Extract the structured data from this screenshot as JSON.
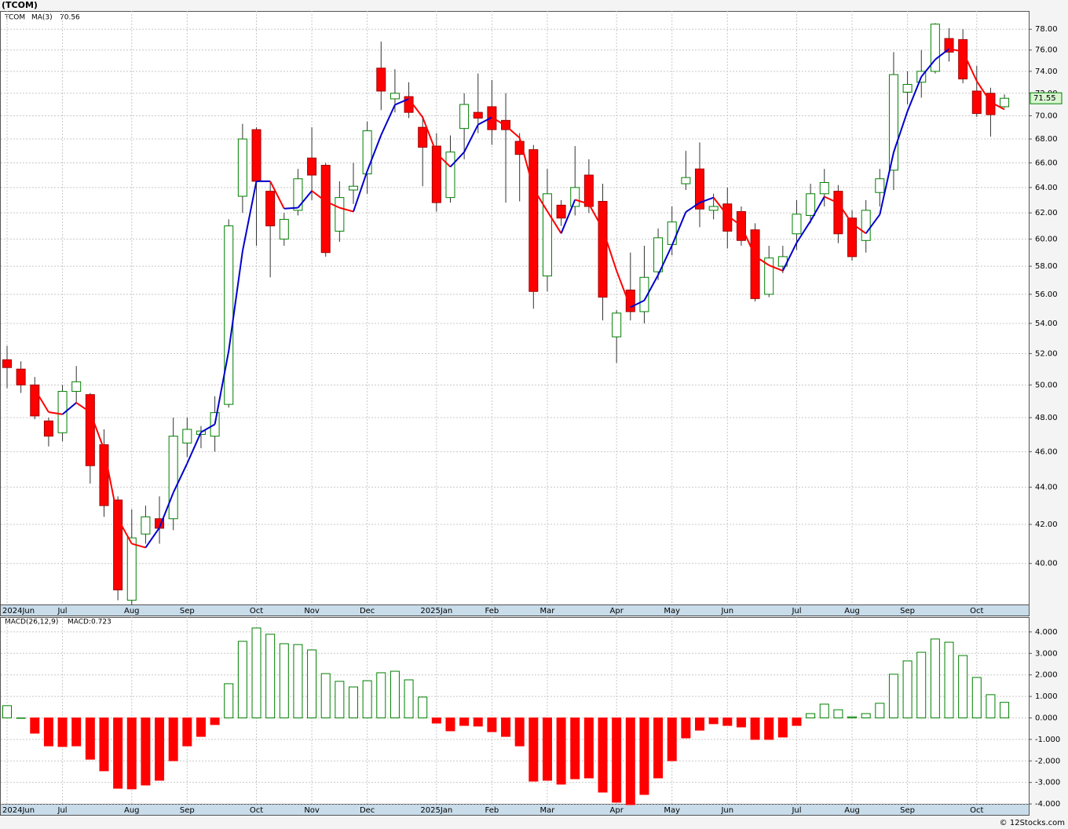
{
  "chart_data": [
    {
      "type": "candlestick",
      "title": "(TCOM)",
      "categories": [
        "2024Jun",
        null,
        null,
        null,
        "Jul",
        null,
        null,
        null,
        null,
        "Aug",
        null,
        null,
        null,
        "Sep",
        null,
        null,
        null,
        null,
        "Oct",
        null,
        null,
        null,
        "Nov",
        null,
        null,
        null,
        "Dec",
        null,
        null,
        null,
        null,
        "2025Jan",
        null,
        null,
        null,
        "Feb",
        null,
        null,
        null,
        "Mar",
        null,
        null,
        null,
        null,
        "Apr",
        null,
        null,
        null,
        "May",
        null,
        null,
        null,
        "Jun",
        null,
        null,
        null,
        null,
        "Jul",
        null,
        null,
        null,
        "Aug",
        null,
        null,
        null,
        "Sep",
        null,
        null,
        null,
        null,
        "Oct",
        null,
        null
      ],
      "series": [
        {
          "name": "TCOM",
          "color": "#008000",
          "down_color": "#ff0000",
          "open": [
            51.6,
            51.0,
            50.0,
            47.8,
            47.1,
            49.6,
            49.4,
            46.4,
            43.3,
            38.2,
            41.5,
            42.3,
            42.3,
            46.5,
            47.0,
            46.9,
            48.8,
            63.3,
            68.8,
            63.7,
            60.0,
            62.2,
            66.4,
            65.8,
            60.6,
            63.8,
            65.1,
            74.3,
            71.5,
            71.7,
            69.0,
            67.4,
            63.2,
            68.9,
            70.3,
            70.8,
            69.6,
            67.8,
            67.1,
            57.3,
            62.6,
            62.5,
            65.0,
            62.9,
            53.1,
            56.3,
            54.8,
            57.6,
            59.6,
            64.3,
            65.5,
            62.2,
            62.7,
            62.1,
            60.7,
            56.0,
            58.0,
            60.4,
            61.8,
            63.5,
            63.7,
            61.6,
            59.9,
            63.6,
            65.4,
            72.1,
            73.0,
            74.0,
            77.1,
            77.0,
            72.2,
            72.0,
            70.8
          ],
          "high": [
            52.5,
            51.5,
            50.5,
            48.0,
            50.0,
            51.2,
            49.5,
            47.3,
            43.5,
            42.8,
            43.0,
            43.5,
            48.0,
            48.0,
            47.5,
            49.3,
            61.5,
            69.3,
            69.0,
            64.5,
            62.0,
            65.5,
            69.0,
            66.0,
            64.5,
            66.0,
            69.5,
            76.8,
            74.2,
            73.0,
            70.0,
            68.5,
            68.3,
            72.0,
            73.8,
            73.2,
            72.0,
            68.5,
            67.5,
            65.5,
            63.0,
            67.4,
            66.3,
            64.3,
            54.9,
            59.0,
            59.5,
            60.8,
            62.5,
            67.0,
            67.7,
            63.5,
            64.0,
            62.5,
            61.2,
            59.5,
            59.5,
            63.0,
            64.3,
            65.5,
            64.2,
            62.2,
            63.0,
            65.5,
            75.8,
            74.0,
            76.0,
            78.6,
            78.1,
            78.0,
            74.5,
            72.5,
            71.9
          ],
          "low": [
            49.8,
            49.5,
            47.9,
            46.3,
            46.6,
            48.9,
            44.2,
            42.4,
            38.2,
            38.0,
            41.0,
            41.0,
            41.7,
            45.7,
            46.2,
            46.0,
            48.6,
            62.0,
            59.5,
            57.2,
            59.5,
            61.8,
            63.0,
            58.7,
            59.8,
            62.7,
            63.5,
            70.5,
            70.3,
            69.8,
            64.1,
            62.1,
            62.8,
            66.3,
            68.5,
            67.5,
            62.8,
            62.9,
            55.0,
            56.2,
            61.0,
            61.8,
            62.0,
            54.2,
            51.4,
            54.2,
            54.0,
            57.0,
            58.8,
            63.8,
            60.9,
            61.5,
            59.3,
            59.5,
            55.5,
            55.8,
            57.5,
            59.2,
            61.2,
            62.5,
            59.7,
            58.4,
            59.0,
            62.5,
            63.8,
            71.0,
            71.6,
            73.8,
            74.9,
            72.9,
            69.9,
            68.2,
            70.7
          ],
          "close": [
            51.1,
            50.0,
            48.1,
            46.9,
            49.6,
            50.2,
            45.2,
            43.0,
            38.7,
            41.3,
            42.4,
            41.8,
            46.9,
            47.3,
            47.2,
            48.3,
            61.0,
            68.0,
            64.5,
            61.0,
            61.5,
            64.7,
            65.0,
            59.0,
            63.2,
            64.1,
            68.7,
            72.2,
            72.0,
            70.3,
            67.3,
            62.8,
            66.9,
            71.0,
            69.8,
            68.8,
            68.8,
            66.7,
            56.2,
            63.5,
            61.6,
            64.0,
            62.5,
            55.8,
            54.7,
            54.8,
            57.2,
            60.1,
            61.3,
            64.8,
            62.3,
            62.5,
            60.6,
            59.9,
            55.7,
            58.6,
            58.7,
            61.9,
            63.5,
            64.4,
            60.4,
            58.7,
            62.2,
            64.7,
            73.7,
            72.8,
            74.0,
            78.5,
            75.8,
            73.3,
            70.2,
            70.1,
            71.55
          ]
        },
        {
          "name": "MA(3)",
          "color": "#0000cc",
          "down_color": "#ff0000",
          "values": [
            null,
            null,
            49.73,
            48.33,
            48.2,
            48.9,
            48.33,
            46.13,
            42.3,
            41.0,
            40.8,
            41.83,
            43.7,
            45.33,
            47.13,
            47.6,
            52.17,
            59.1,
            64.5,
            64.5,
            62.33,
            62.4,
            63.73,
            62.9,
            62.4,
            62.1,
            65.33,
            68.33,
            70.97,
            71.5,
            69.87,
            66.8,
            65.67,
            66.9,
            69.23,
            69.87,
            69.13,
            68.1,
            63.9,
            62.13,
            60.43,
            63.03,
            62.7,
            60.77,
            57.67,
            55.1,
            55.57,
            57.37,
            59.53,
            62.07,
            62.8,
            63.2,
            61.8,
            61.0,
            58.73,
            58.07,
            57.67,
            59.73,
            61.37,
            63.27,
            62.77,
            61.17,
            60.43,
            61.87,
            66.87,
            70.4,
            73.5,
            75.1,
            76.1,
            75.87,
            73.1,
            71.2,
            70.56
          ]
        }
      ],
      "ylim": [
        38.0,
        79.8
      ],
      "log_scale": true,
      "grid": true,
      "yticks": [
        {
          "value": 40,
          "label": "40.00"
        },
        {
          "value": 42,
          "label": "42.00"
        },
        {
          "value": 44,
          "label": "44.00"
        },
        {
          "value": 46,
          "label": "46.00"
        },
        {
          "value": 48,
          "label": "48.00"
        },
        {
          "value": 50,
          "label": "50.00"
        },
        {
          "value": 52,
          "label": "52.00"
        },
        {
          "value": 54,
          "label": "54.00"
        },
        {
          "value": 56,
          "label": "56.00"
        },
        {
          "value": 58,
          "label": "58.00"
        },
        {
          "value": 60,
          "label": "60.00"
        },
        {
          "value": 62,
          "label": "62.00"
        },
        {
          "value": 64,
          "label": "64.00"
        },
        {
          "value": 66,
          "label": "66.00"
        },
        {
          "value": 68,
          "label": "68.00"
        },
        {
          "value": 70,
          "label": "70.00"
        },
        {
          "value": 72,
          "label": "72.00"
        },
        {
          "value": 74,
          "label": "74.00"
        },
        {
          "value": 76,
          "label": "76.00"
        },
        {
          "value": 78,
          "label": "78.00"
        }
      ]
    },
    {
      "type": "bar",
      "title": "MACD(26,12,9)",
      "annotation": "MACD:0.723",
      "color": "#008000",
      "negative_color": "#ff0000",
      "values": [
        0.57,
        0,
        -0.71,
        -1.3,
        -1.33,
        -1.3,
        -1.92,
        -2.46,
        -3.27,
        -3.3,
        -3.12,
        -2.9,
        -1.99,
        -1.3,
        -0.86,
        -0.31,
        1.59,
        3.56,
        4.18,
        3.89,
        3.45,
        3.41,
        3.16,
        2.06,
        1.7,
        1.44,
        1.73,
        2.1,
        2.17,
        1.77,
        0.97,
        -0.24,
        -0.6,
        -0.35,
        -0.38,
        -0.64,
        -0.86,
        -1.3,
        -2.94,
        -2.9,
        -3.08,
        -2.83,
        -2.79,
        -3.45,
        -3.92,
        -4.03,
        -3.56,
        -2.79,
        -1.99,
        -0.93,
        -0.57,
        -0.27,
        -0.35,
        -0.42,
        -1.0,
        -1.0,
        -0.89,
        -0.35,
        0.2,
        0.64,
        0.38,
        0.05,
        0.2,
        0.68,
        2.03,
        2.65,
        3.05,
        3.67,
        3.52,
        2.9,
        1.88,
        1.08,
        0.723
      ],
      "ylim": [
        -4.07,
        4.69
      ],
      "grid": true,
      "yticks": [
        {
          "value": -4,
          "label": "-4.000"
        },
        {
          "value": -3,
          "label": "-3.000"
        },
        {
          "value": -2,
          "label": "-2.000"
        },
        {
          "value": -1,
          "label": "-1.000"
        },
        {
          "value": 0,
          "label": "0.000"
        },
        {
          "value": 1,
          "label": "1.000"
        },
        {
          "value": 2,
          "label": "2.000"
        },
        {
          "value": 3,
          "label": "3.000"
        },
        {
          "value": 4,
          "label": "4.000"
        }
      ]
    }
  ],
  "footer": "© 12Stocks.com"
}
